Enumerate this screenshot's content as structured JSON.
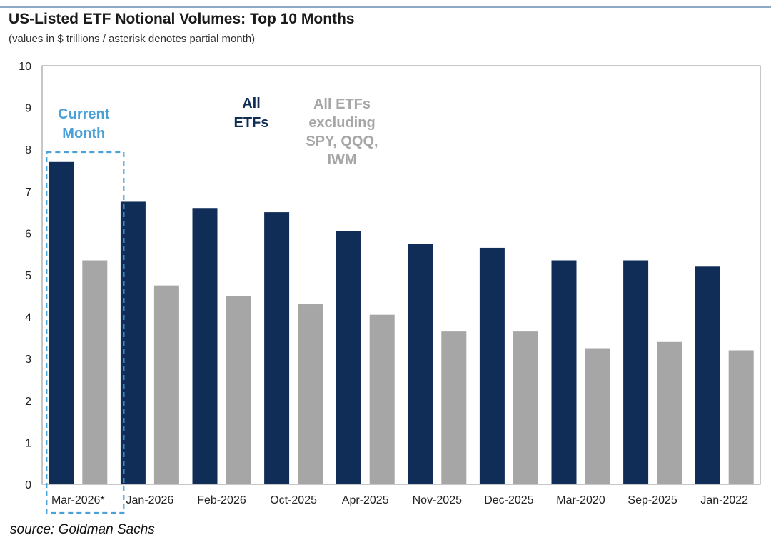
{
  "header": {
    "title": "US-Listed ETF Notional Volumes: Top 10 Months",
    "subtitle": "(values in $ trillions / asterisk denotes partial month)"
  },
  "footer": {
    "source": "source: Goldman Sachs"
  },
  "colors": {
    "all_etfs": "#0f2d57",
    "excluding": "#a6a6a6",
    "current_month": "#4aa0d8",
    "axis": "#7f7f7f"
  },
  "chart_data": {
    "type": "bar",
    "title": "US-Listed ETF Notional Volumes: Top 10 Months",
    "subtitle": "(values in $ trillions / asterisk denotes partial month)",
    "xlabel": "",
    "ylabel": "",
    "ylim": [
      0,
      10
    ],
    "yticks": [
      0,
      1,
      2,
      3,
      4,
      5,
      6,
      7,
      8,
      9,
      10
    ],
    "grid": false,
    "categories": [
      "Mar-2026*",
      "Jan-2026",
      "Feb-2026",
      "Oct-2025",
      "Apr-2025",
      "Nov-2025",
      "Dec-2025",
      "Mar-2020",
      "Sep-2025",
      "Jan-2022"
    ],
    "series": [
      {
        "name": "All ETFs",
        "values": [
          7.7,
          6.75,
          6.6,
          6.5,
          6.05,
          5.75,
          5.65,
          5.35,
          5.35,
          5.2
        ]
      },
      {
        "name": "All ETFs excluding SPY, QQQ, IWM",
        "values": [
          5.35,
          4.75,
          4.5,
          4.3,
          4.05,
          3.65,
          3.65,
          3.25,
          3.4,
          3.2
        ]
      }
    ],
    "annotations": {
      "current_month": [
        "Current",
        "Month"
      ],
      "all_etfs": [
        "All",
        "ETFs"
      ],
      "excluding": [
        "All ETFs",
        "excluding",
        "SPY, QQQ,",
        "IWM"
      ]
    }
  }
}
